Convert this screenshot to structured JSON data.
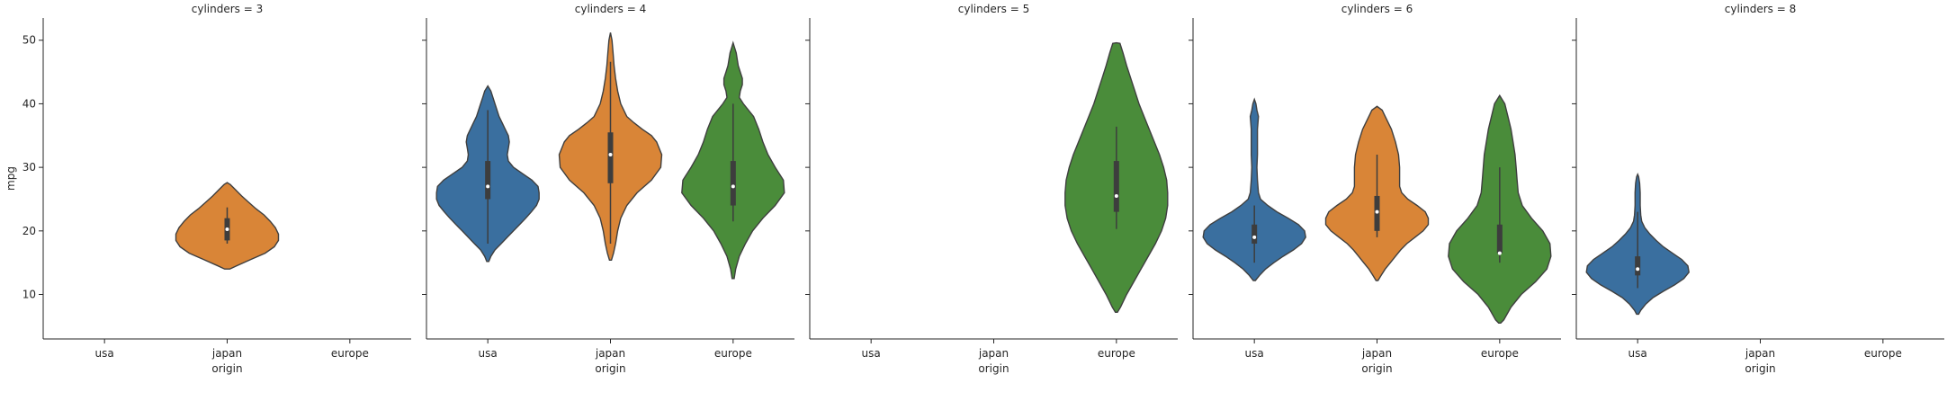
{
  "chart_data": {
    "type": "violin",
    "ylabel": "mpg",
    "xlabel": "origin",
    "ylim": [
      3,
      53.5
    ],
    "yticks": [
      10,
      20,
      30,
      40,
      50
    ],
    "categories": [
      "usa",
      "japan",
      "europe"
    ],
    "colors": {
      "usa": "#3a6f9f",
      "japan": "#d98537",
      "europe": "#4a8c3a",
      "box": "#3d3d3d"
    },
    "panels": [
      {
        "title": "cylinders = 3",
        "violins": [
          {
            "category": "japan",
            "min": 18.0,
            "q1": 18.5,
            "median": 20.25,
            "q3": 22.0,
            "max": 23.7,
            "profile": [
              [
                14,
                0.05
              ],
              [
                14.5,
                0.18
              ],
              [
                15.5,
                0.46
              ],
              [
                16.5,
                0.74
              ],
              [
                17.5,
                0.92
              ],
              [
                18.5,
                1.0
              ],
              [
                19.5,
                1.0
              ],
              [
                20.5,
                0.94
              ],
              [
                21.5,
                0.84
              ],
              [
                22.5,
                0.72
              ],
              [
                23.5,
                0.56
              ],
              [
                24.5,
                0.42
              ],
              [
                25.5,
                0.28
              ],
              [
                26.5,
                0.16
              ],
              [
                27.3,
                0.06
              ],
              [
                27.6,
                0.0
              ]
            ]
          }
        ]
      },
      {
        "title": "cylinders = 4",
        "violins": [
          {
            "category": "usa",
            "min": 18.0,
            "q1": 25.0,
            "median": 27.0,
            "q3": 31.0,
            "max": 39.0,
            "profile": [
              [
                15.2,
                0.02
              ],
              [
                16,
                0.06
              ],
              [
                17,
                0.14
              ],
              [
                18,
                0.26
              ],
              [
                19,
                0.38
              ],
              [
                20,
                0.5
              ],
              [
                21,
                0.62
              ],
              [
                22,
                0.74
              ],
              [
                23,
                0.85
              ],
              [
                24,
                0.95
              ],
              [
                25,
                1.0
              ],
              [
                26,
                1.0
              ],
              [
                27,
                0.98
              ],
              [
                28,
                0.86
              ],
              [
                29,
                0.68
              ],
              [
                30,
                0.5
              ],
              [
                31,
                0.4
              ],
              [
                32,
                0.38
              ],
              [
                33,
                0.4
              ],
              [
                34,
                0.42
              ],
              [
                35,
                0.4
              ],
              [
                36,
                0.34
              ],
              [
                37,
                0.28
              ],
              [
                38,
                0.22
              ],
              [
                39,
                0.18
              ],
              [
                40,
                0.14
              ],
              [
                41,
                0.1
              ],
              [
                42,
                0.06
              ],
              [
                42.8,
                0.0
              ]
            ]
          },
          {
            "category": "japan",
            "min": 18.0,
            "q1": 27.5,
            "median": 32.0,
            "q3": 35.5,
            "max": 46.6,
            "profile": [
              [
                15.4,
                0.02
              ],
              [
                16.5,
                0.06
              ],
              [
                18,
                0.1
              ],
              [
                20,
                0.14
              ],
              [
                22,
                0.2
              ],
              [
                24,
                0.32
              ],
              [
                26,
                0.52
              ],
              [
                28,
                0.8
              ],
              [
                30,
                0.98
              ],
              [
                32,
                1.0
              ],
              [
                34,
                0.9
              ],
              [
                35,
                0.8
              ],
              [
                36,
                0.62
              ],
              [
                37,
                0.46
              ],
              [
                38,
                0.32
              ],
              [
                40,
                0.2
              ],
              [
                42,
                0.14
              ],
              [
                44,
                0.1
              ],
              [
                46,
                0.07
              ],
              [
                48,
                0.05
              ],
              [
                50,
                0.03
              ],
              [
                51.2,
                0.0
              ]
            ]
          },
          {
            "category": "europe",
            "min": 21.5,
            "q1": 24.0,
            "median": 27.0,
            "q3": 31.0,
            "max": 40.0,
            "profile": [
              [
                12.5,
                0.02
              ],
              [
                14,
                0.05
              ],
              [
                16,
                0.12
              ],
              [
                18,
                0.24
              ],
              [
                20,
                0.38
              ],
              [
                22,
                0.58
              ],
              [
                24,
                0.82
              ],
              [
                26,
                1.0
              ],
              [
                28,
                0.98
              ],
              [
                30,
                0.82
              ],
              [
                32,
                0.68
              ],
              [
                34,
                0.58
              ],
              [
                36,
                0.5
              ],
              [
                38,
                0.4
              ],
              [
                40,
                0.2
              ],
              [
                41,
                0.12
              ],
              [
                42,
                0.14
              ],
              [
                43,
                0.18
              ],
              [
                44,
                0.18
              ],
              [
                45,
                0.14
              ],
              [
                46,
                0.1
              ],
              [
                48,
                0.06
              ],
              [
                49.6,
                0.0
              ]
            ]
          }
        ]
      },
      {
        "title": "cylinders = 5",
        "violins": [
          {
            "category": "europe",
            "min": 20.3,
            "q1": 23.0,
            "median": 25.5,
            "q3": 31.0,
            "max": 36.4,
            "profile": [
              [
                7.2,
                0.02
              ],
              [
                8,
                0.08
              ],
              [
                10,
                0.2
              ],
              [
                12,
                0.34
              ],
              [
                14,
                0.48
              ],
              [
                16,
                0.62
              ],
              [
                18,
                0.76
              ],
              [
                20,
                0.88
              ],
              [
                22,
                0.96
              ],
              [
                24,
                1.0
              ],
              [
                26,
                1.0
              ],
              [
                28,
                0.98
              ],
              [
                30,
                0.92
              ],
              [
                32,
                0.84
              ],
              [
                34,
                0.74
              ],
              [
                36,
                0.64
              ],
              [
                38,
                0.54
              ],
              [
                40,
                0.44
              ],
              [
                42,
                0.36
              ],
              [
                44,
                0.28
              ],
              [
                46,
                0.2
              ],
              [
                48,
                0.13
              ],
              [
                49.5,
                0.07
              ],
              [
                49.6,
                0.0
              ]
            ]
          }
        ]
      },
      {
        "title": "cylinders = 6",
        "violins": [
          {
            "category": "usa",
            "min": 15.0,
            "q1": 18.0,
            "median": 19.0,
            "q3": 21.0,
            "max": 24.0,
            "profile": [
              [
                12.2,
                0.02
              ],
              [
                13,
                0.1
              ],
              [
                14,
                0.22
              ],
              [
                15,
                0.38
              ],
              [
                16,
                0.56
              ],
              [
                17,
                0.76
              ],
              [
                18,
                0.92
              ],
              [
                19,
                1.0
              ],
              [
                20,
                0.98
              ],
              [
                21,
                0.86
              ],
              [
                22,
                0.66
              ],
              [
                23,
                0.44
              ],
              [
                24,
                0.26
              ],
              [
                25,
                0.12
              ],
              [
                26,
                0.08
              ],
              [
                28,
                0.06
              ],
              [
                30,
                0.05
              ],
              [
                32,
                0.06
              ],
              [
                34,
                0.06
              ],
              [
                36,
                0.06
              ],
              [
                38,
                0.08
              ],
              [
                39,
                0.05
              ],
              [
                40,
                0.03
              ],
              [
                40.7,
                0.0
              ]
            ]
          },
          {
            "category": "japan",
            "min": 19.0,
            "q1": 20.0,
            "median": 23.0,
            "q3": 25.5,
            "max": 32.0,
            "profile": [
              [
                12.2,
                0.02
              ],
              [
                13,
                0.08
              ],
              [
                14,
                0.16
              ],
              [
                15,
                0.26
              ],
              [
                16,
                0.36
              ],
              [
                17,
                0.46
              ],
              [
                18,
                0.58
              ],
              [
                19,
                0.74
              ],
              [
                20,
                0.9
              ],
              [
                21,
                1.0
              ],
              [
                22,
                1.0
              ],
              [
                23,
                0.94
              ],
              [
                24,
                0.78
              ],
              [
                25,
                0.6
              ],
              [
                26,
                0.48
              ],
              [
                27,
                0.44
              ],
              [
                28,
                0.44
              ],
              [
                29,
                0.44
              ],
              [
                30,
                0.44
              ],
              [
                32,
                0.42
              ],
              [
                34,
                0.36
              ],
              [
                36,
                0.28
              ],
              [
                37,
                0.22
              ],
              [
                38,
                0.16
              ],
              [
                39,
                0.1
              ],
              [
                39.6,
                0.0
              ]
            ]
          },
          {
            "category": "europe",
            "min": 15.0,
            "q1": 16.5,
            "median": 16.5,
            "q3": 21.0,
            "max": 30.0,
            "profile": [
              [
                5.5,
                0.02
              ],
              [
                6,
                0.08
              ],
              [
                8,
                0.22
              ],
              [
                10,
                0.42
              ],
              [
                12,
                0.7
              ],
              [
                14,
                0.92
              ],
              [
                16,
                1.0
              ],
              [
                18,
                0.98
              ],
              [
                20,
                0.84
              ],
              [
                22,
                0.62
              ],
              [
                24,
                0.44
              ],
              [
                26,
                0.36
              ],
              [
                28,
                0.34
              ],
              [
                30,
                0.32
              ],
              [
                32,
                0.3
              ],
              [
                34,
                0.26
              ],
              [
                36,
                0.22
              ],
              [
                38,
                0.16
              ],
              [
                40,
                0.1
              ],
              [
                41.3,
                0.0
              ]
            ]
          }
        ]
      },
      {
        "title": "cylinders = 8",
        "violins": [
          {
            "category": "usa",
            "min": 11.0,
            "q1": 13.0,
            "median": 14.0,
            "q3": 16.0,
            "max": 23.0,
            "profile": [
              [
                6.9,
                0.02
              ],
              [
                7.5,
                0.06
              ],
              [
                8.5,
                0.16
              ],
              [
                9.5,
                0.3
              ],
              [
                10.5,
                0.5
              ],
              [
                11.5,
                0.72
              ],
              [
                12.5,
                0.9
              ],
              [
                13.5,
                1.0
              ],
              [
                14.5,
                0.98
              ],
              [
                15.5,
                0.86
              ],
              [
                16.5,
                0.68
              ],
              [
                17.5,
                0.5
              ],
              [
                18.5,
                0.36
              ],
              [
                19.5,
                0.24
              ],
              [
                20.5,
                0.14
              ],
              [
                21.5,
                0.08
              ],
              [
                22.5,
                0.06
              ],
              [
                24,
                0.05
              ],
              [
                26,
                0.05
              ],
              [
                27.5,
                0.04
              ],
              [
                28.5,
                0.02
              ],
              [
                28.9,
                0.0
              ]
            ]
          }
        ]
      }
    ]
  }
}
